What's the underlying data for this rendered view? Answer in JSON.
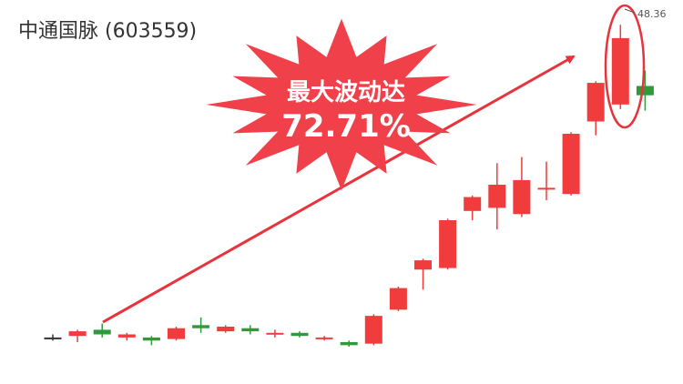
{
  "title": "中通国脉 (603559)",
  "annotation": {
    "line1": "最大波动达",
    "line2": "72.71%"
  },
  "colors": {
    "up": "#f03c3c",
    "down": "#2e9b3a",
    "neutral": "#333333",
    "accent": "#e8323c"
  },
  "chart_data": {
    "type": "candlestick",
    "peak_label": "48.36",
    "ylim": [
      26.5,
      49.5
    ],
    "candles": [
      {
        "o": 28.1,
        "c": 28.1,
        "h": 28.3,
        "l": 27.9
      },
      {
        "o": 28.2,
        "c": 28.5,
        "h": 28.6,
        "l": 27.8
      },
      {
        "o": 28.6,
        "c": 28.3,
        "h": 29.0,
        "l": 28.1
      },
      {
        "o": 28.1,
        "c": 28.3,
        "h": 28.4,
        "l": 27.9
      },
      {
        "o": 28.1,
        "c": 27.9,
        "h": 28.2,
        "l": 27.6
      },
      {
        "o": 28.0,
        "c": 28.7,
        "h": 28.8,
        "l": 27.9
      },
      {
        "o": 28.9,
        "c": 28.7,
        "h": 29.4,
        "l": 28.4
      },
      {
        "o": 28.5,
        "c": 28.8,
        "h": 28.9,
        "l": 28.4
      },
      {
        "o": 28.7,
        "c": 28.5,
        "h": 28.9,
        "l": 28.3
      },
      {
        "o": 28.3,
        "c": 28.4,
        "h": 28.6,
        "l": 28.1
      },
      {
        "o": 28.4,
        "c": 28.2,
        "h": 28.5,
        "l": 28.1
      },
      {
        "o": 28.1,
        "c": 28.1,
        "h": 28.2,
        "l": 27.9
      },
      {
        "o": 27.8,
        "c": 27.6,
        "h": 27.9,
        "l": 27.5
      },
      {
        "o": 27.7,
        "c": 29.5,
        "h": 29.6,
        "l": 27.6
      },
      {
        "o": 29.9,
        "c": 31.3,
        "h": 31.4,
        "l": 29.8
      },
      {
        "o": 32.5,
        "c": 33.1,
        "h": 33.2,
        "l": 31.2
      },
      {
        "o": 32.6,
        "c": 35.7,
        "h": 35.8,
        "l": 32.5
      },
      {
        "o": 36.3,
        "c": 37.2,
        "h": 37.3,
        "l": 35.7
      },
      {
        "o": 36.5,
        "c": 38.0,
        "h": 39.4,
        "l": 35.1
      },
      {
        "o": 36.1,
        "c": 38.3,
        "h": 39.8,
        "l": 35.9
      },
      {
        "o": 37.7,
        "c": 37.8,
        "h": 39.5,
        "l": 37.0
      },
      {
        "o": 37.4,
        "c": 41.3,
        "h": 41.4,
        "l": 37.3
      },
      {
        "o": 42.1,
        "c": 44.6,
        "h": 44.7,
        "l": 41.2
      },
      {
        "o": 43.2,
        "c": 47.5,
        "h": 48.36,
        "l": 42.9
      },
      {
        "o": 44.4,
        "c": 43.8,
        "h": 45.4,
        "l": 42.8
      }
    ]
  }
}
